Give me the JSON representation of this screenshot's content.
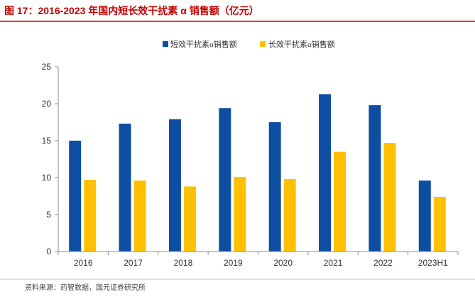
{
  "title": "图 17：2016-2023 年国内短长效干扰素 α 销售额（亿元）",
  "source": "资料来源：药智数据，国元证券研究所",
  "colors": {
    "title": "#c00000",
    "short": "#0d4ea3",
    "long": "#ffc000",
    "axis": "#8c8c8c"
  },
  "chart_data": {
    "type": "bar",
    "title": "图 17：2016-2023 年国内短长效干扰素 α 销售额（亿元）",
    "xlabel": "",
    "ylabel": "",
    "categories": [
      "2016",
      "2017",
      "2018",
      "2019",
      "2020",
      "2021",
      "2022",
      "2023H1"
    ],
    "series": [
      {
        "name": "短效干扰素α销售额",
        "values": [
          15.0,
          17.3,
          17.9,
          19.4,
          17.5,
          21.3,
          19.8,
          9.6
        ]
      },
      {
        "name": "长效干扰素α销售额",
        "values": [
          9.7,
          9.6,
          8.8,
          10.1,
          9.8,
          13.5,
          14.7,
          7.4
        ]
      }
    ],
    "ylim": [
      0,
      25
    ],
    "yticks": [
      0,
      5,
      10,
      15,
      20,
      25
    ],
    "grid": false,
    "legend": "top-center"
  }
}
